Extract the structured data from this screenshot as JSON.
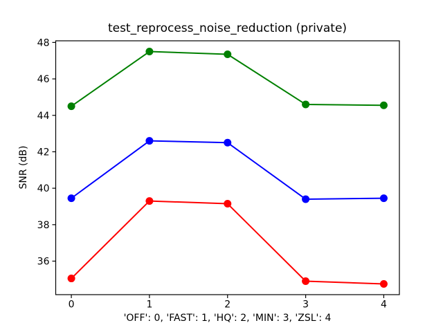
{
  "figure": {
    "background": "#ffffff"
  },
  "chart_data": {
    "type": "line",
    "title": "test_reprocess_noise_reduction (private)",
    "xlabel": "'OFF': 0, 'FAST': 1, 'HQ': 2, 'MIN': 3, 'ZSL': 4",
    "ylabel": "SNR (dB)",
    "x": [
      0,
      1,
      2,
      3,
      4
    ],
    "x_mode_names": [
      "OFF",
      "FAST",
      "HQ",
      "MIN",
      "ZSL"
    ],
    "series": [
      {
        "name": "green",
        "color": "#008000",
        "values": [
          44.5,
          47.5,
          47.35,
          44.6,
          44.55
        ]
      },
      {
        "name": "blue",
        "color": "#0000ff",
        "values": [
          39.45,
          42.6,
          42.5,
          39.4,
          39.45
        ]
      },
      {
        "name": "red",
        "color": "#ff0000",
        "values": [
          35.05,
          39.3,
          39.15,
          34.9,
          34.75
        ]
      }
    ],
    "xticks": [
      0,
      1,
      2,
      3,
      4
    ],
    "yticks": [
      36,
      38,
      40,
      42,
      44,
      46,
      48
    ],
    "xlim": [
      -0.2,
      4.2
    ],
    "ylim": [
      34.16,
      48.09
    ],
    "grid": false,
    "legend": null,
    "marker": "circle",
    "axis_color": "#000000",
    "text_color": "#000000"
  }
}
